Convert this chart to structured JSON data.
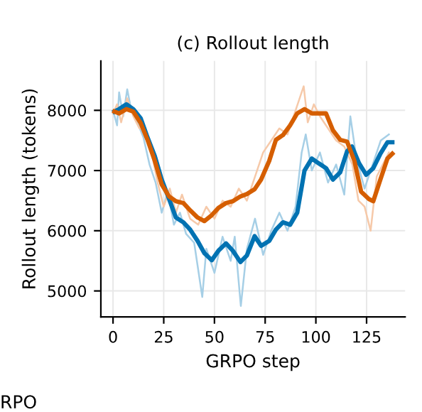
{
  "chart_data": {
    "type": "line",
    "title": "(c) Rollout length",
    "xlabel": "GRPO step",
    "ylabel": "Rollout length (tokens)",
    "series": [
      {
        "color": "#a6cfe6",
        "x": [
          0,
          2,
          3,
          5,
          7,
          9,
          12,
          15,
          18,
          21,
          24,
          27,
          30,
          33,
          36,
          40,
          44,
          46,
          50,
          54,
          58,
          60,
          63,
          66,
          70,
          74,
          78,
          82,
          86,
          90,
          93,
          95,
          98,
          102,
          106,
          110,
          114,
          117,
          120,
          124,
          128,
          132,
          136
        ],
        "values": [
          8000,
          7750,
          8300,
          7900,
          8350,
          8000,
          7800,
          7550,
          7100,
          6800,
          6300,
          6650,
          6100,
          6300,
          5950,
          5800,
          4900,
          5700,
          5300,
          5900,
          5500,
          5900,
          4750,
          5700,
          6200,
          5600,
          6000,
          6300,
          6000,
          6400,
          7300,
          7600,
          7000,
          7300,
          6800,
          7100,
          6600,
          7900,
          7200,
          6700,
          7100,
          7500,
          7600
        ]
      },
      {
        "color": "#f6c9a9",
        "x": [
          0,
          2,
          4,
          7,
          10,
          13,
          16,
          19,
          22,
          25,
          28,
          31,
          34,
          38,
          42,
          46,
          50,
          54,
          58,
          62,
          66,
          70,
          74,
          78,
          82,
          86,
          90,
          94,
          96,
          99,
          102,
          106,
          110,
          114,
          118,
          121,
          124,
          127,
          130,
          133,
          136
        ],
        "values": [
          7950,
          8100,
          7800,
          8200,
          7900,
          7700,
          7700,
          7300,
          6800,
          6400,
          6700,
          6300,
          6600,
          6200,
          6100,
          6400,
          6200,
          6500,
          6400,
          6700,
          6500,
          6900,
          7300,
          7500,
          7700,
          7600,
          8000,
          8400,
          7800,
          8100,
          7900,
          7700,
          7500,
          7400,
          7100,
          6500,
          6400,
          6000,
          6900,
          7100,
          7300
        ]
      },
      {
        "color": "#0072b2",
        "x": [
          0.7,
          3,
          6.6,
          10,
          13.6,
          17,
          20.6,
          24,
          27.6,
          31,
          34.7,
          38,
          41.7,
          45,
          48.7,
          52,
          55.7,
          59,
          62.8,
          66,
          69.8,
          73,
          77,
          80.3,
          83.8,
          87.3,
          90.8,
          94.4,
          98,
          101.4,
          105,
          108.4,
          112,
          115.4,
          117.8,
          121.3,
          124.8,
          128.3,
          131.8,
          135.3,
          137.7
        ],
        "values": [
          7980,
          8020,
          8100,
          8020,
          7870,
          7550,
          7240,
          6850,
          6530,
          6220,
          6140,
          6020,
          5830,
          5630,
          5510,
          5670,
          5790,
          5670,
          5480,
          5590,
          5910,
          5750,
          5830,
          6020,
          6140,
          6100,
          6300,
          7000,
          7200,
          7120,
          7040,
          6850,
          6970,
          7320,
          7400,
          7120,
          6930,
          7040,
          7280,
          7470,
          7470
        ]
      },
      {
        "color": "#d55e00",
        "x": [
          0.7,
          3,
          6.6,
          10,
          13.6,
          17,
          20.6,
          24,
          27.6,
          31,
          34.7,
          38,
          41.7,
          45,
          48.7,
          52,
          55.7,
          59,
          62.8,
          66,
          69.8,
          73,
          77,
          80.3,
          83.8,
          87.3,
          90.8,
          94.4,
          98,
          101.4,
          105,
          108.4,
          112,
          115.4,
          119,
          122.3,
          126,
          128.3,
          131.8,
          135.3,
          137.7
        ],
        "values": [
          7980,
          7950,
          8020,
          7980,
          7790,
          7510,
          7160,
          6770,
          6570,
          6490,
          6460,
          6340,
          6220,
          6160,
          6260,
          6380,
          6460,
          6490,
          6570,
          6610,
          6690,
          6850,
          7160,
          7510,
          7590,
          7750,
          7950,
          8020,
          7950,
          7950,
          7950,
          7670,
          7510,
          7480,
          7160,
          6650,
          6530,
          6490,
          6850,
          7200,
          7280
        ]
      }
    ],
    "xlim": [
      -6,
      144
    ],
    "ylim": [
      4570,
      8820
    ],
    "xticks": [
      0,
      25,
      50,
      75,
      100,
      125
    ],
    "yticks": [
      5000,
      6000,
      7000,
      8000
    ],
    "grid": true,
    "annotations": [
      "RPO"
    ]
  }
}
